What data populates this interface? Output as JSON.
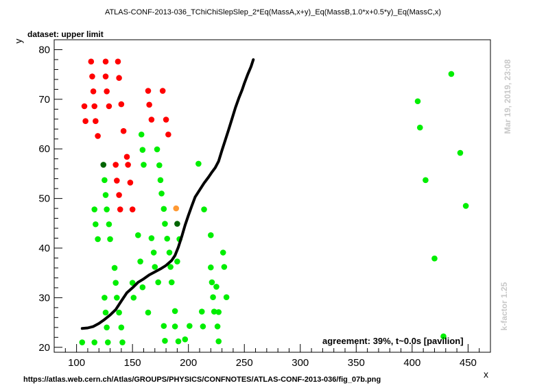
{
  "title": "ATLAS-CONF-2013-036_TChiChiSlepSlep_2*Eq(MassA,x+y)_Eq(MassB,1.0*x+0.5*y)_Eq(MassC,x)",
  "dataset_label": "dataset: upper limit",
  "footer_url": "https://atlas.web.cern.ch/Atlas/GROUPS/PHYSICS/CONFNOTES/ATLAS-CONF-2013-036/fig_07b.png",
  "agreement_text": "agreement: 39%, t~0.0s [pavilion]",
  "timestamp": "Mar 19, 2019, 23:08",
  "kfactor": "k-factor 1.25",
  "colors": {
    "excluded": "#ff0000",
    "allowed": "#00ee00",
    "dark_green": "#006400",
    "orange": "#ff9933",
    "curve": "#000000"
  },
  "chart_data": {
    "type": "scatter",
    "xlabel": "x",
    "ylabel": "y",
    "xlim": [
      80,
      470
    ],
    "ylim": [
      19,
      82
    ],
    "x_ticks": [
      100,
      150,
      200,
      250,
      300,
      350,
      400,
      450
    ],
    "y_ticks": [
      20,
      30,
      40,
      50,
      60,
      70,
      80
    ],
    "grid": false,
    "series": [
      {
        "color_key": "excluded",
        "points": [
          [
            107,
            68.6
          ],
          [
            108,
            65.6
          ],
          [
            113,
            77.6
          ],
          [
            114,
            74.6
          ],
          [
            115,
            71.6
          ],
          [
            116,
            68.6
          ],
          [
            117,
            65.6
          ],
          [
            119,
            62.6
          ],
          [
            126,
            77.6
          ],
          [
            126,
            74.6
          ],
          [
            127,
            71.6
          ],
          [
            129,
            68.6
          ],
          [
            137,
            77.6
          ],
          [
            138,
            74.3
          ],
          [
            140,
            69
          ],
          [
            142,
            63.6
          ],
          [
            135,
            56.8
          ],
          [
            136,
            53.6
          ],
          [
            138,
            50.7
          ],
          [
            139,
            47.8
          ],
          [
            145,
            58.4
          ],
          [
            146,
            56.8
          ],
          [
            148,
            53.2
          ],
          [
            150,
            47.8
          ],
          [
            164,
            71.7
          ],
          [
            165,
            68.9
          ],
          [
            167,
            65.9
          ],
          [
            177,
            71.7
          ],
          [
            180,
            65.9
          ],
          [
            182,
            62.9
          ]
        ]
      },
      {
        "color_key": "allowed",
        "points": [
          [
            105,
            21
          ],
          [
            116,
            47.8
          ],
          [
            117,
            44.8
          ],
          [
            119,
            41.8
          ],
          [
            116,
            21
          ],
          [
            125,
            53.7
          ],
          [
            126,
            50.7
          ],
          [
            127,
            47.8
          ],
          [
            129,
            44.8
          ],
          [
            130,
            41.8
          ],
          [
            125,
            30
          ],
          [
            126,
            27
          ],
          [
            127,
            24
          ],
          [
            128,
            21
          ],
          [
            134,
            36
          ],
          [
            135,
            33
          ],
          [
            136,
            30
          ],
          [
            138,
            27
          ],
          [
            140,
            24
          ],
          [
            141,
            21
          ],
          [
            150,
            33
          ],
          [
            151,
            30
          ],
          [
            155,
            42.6
          ],
          [
            157,
            37.3
          ],
          [
            158,
            62.9
          ],
          [
            159,
            59.8
          ],
          [
            160,
            56.8
          ],
          [
            159,
            32.1
          ],
          [
            164,
            27
          ],
          [
            167,
            42
          ],
          [
            169,
            39.1
          ],
          [
            170,
            36.2
          ],
          [
            172,
            59.9
          ],
          [
            173,
            33.1
          ],
          [
            174,
            56.7
          ],
          [
            175,
            53.7
          ],
          [
            176,
            51
          ],
          [
            178,
            47.9
          ],
          [
            179,
            44.9
          ],
          [
            181,
            41.9
          ],
          [
            183,
            39.1
          ],
          [
            184,
            36.2
          ],
          [
            185,
            33.1
          ],
          [
            178,
            24.3
          ],
          [
            179,
            21.3
          ],
          [
            188,
            27.3
          ],
          [
            188,
            24.2
          ],
          [
            190,
            37.3
          ],
          [
            191,
            21.2
          ],
          [
            192,
            41.8
          ],
          [
            197,
            21.6
          ],
          [
            201,
            24.3
          ],
          [
            209,
            57
          ],
          [
            212,
            27.2
          ],
          [
            213,
            24.2
          ],
          [
            214,
            47.8
          ],
          [
            220,
            42.6
          ],
          [
            220,
            36.1
          ],
          [
            221,
            33.1
          ],
          [
            222,
            30.1
          ],
          [
            223,
            27.2
          ],
          [
            225,
            32.2
          ],
          [
            226,
            24.2
          ],
          [
            227,
            21.2
          ],
          [
            227,
            27.1
          ],
          [
            231,
            39.1
          ],
          [
            232,
            36.2
          ],
          [
            234,
            30.1
          ],
          [
            405,
            69.6
          ],
          [
            407,
            64.3
          ],
          [
            412,
            53.7
          ],
          [
            420,
            37.9
          ],
          [
            428,
            22.2
          ],
          [
            435,
            75.1
          ],
          [
            443,
            59.2
          ],
          [
            448,
            48.5
          ]
        ]
      },
      {
        "color_key": "dark_green",
        "points": [
          [
            124,
            56.8
          ],
          [
            190,
            44.9
          ]
        ]
      },
      {
        "color_key": "orange",
        "points": [
          [
            189,
            48
          ]
        ]
      }
    ],
    "curve": [
      [
        105,
        23.8
      ],
      [
        110,
        23.9
      ],
      [
        115,
        24.2
      ],
      [
        120,
        24.8
      ],
      [
        125,
        25.6
      ],
      [
        130,
        26.5
      ],
      [
        135,
        27.6
      ],
      [
        140,
        29.3
      ],
      [
        145,
        31
      ],
      [
        150,
        32
      ],
      [
        155,
        33.1
      ],
      [
        160,
        33.8
      ],
      [
        165,
        34.6
      ],
      [
        170,
        35.2
      ],
      [
        175,
        35.8
      ],
      [
        180,
        36.5
      ],
      [
        185,
        37.5
      ],
      [
        188,
        38.5
      ],
      [
        191,
        40.2
      ],
      [
        194,
        42.3
      ],
      [
        197,
        44.6
      ],
      [
        200,
        46.6
      ],
      [
        203,
        48.5
      ],
      [
        206,
        50.3
      ],
      [
        210,
        51.7
      ],
      [
        214,
        53.1
      ],
      [
        218,
        54.3
      ],
      [
        221,
        55.3
      ],
      [
        224,
        56.2
      ],
      [
        227,
        57.5
      ],
      [
        230,
        59.7
      ],
      [
        233,
        61.8
      ],
      [
        236,
        63.9
      ],
      [
        239,
        66.1
      ],
      [
        242,
        68.3
      ],
      [
        245,
        70.2
      ],
      [
        248,
        71.9
      ],
      [
        250,
        73.2
      ],
      [
        253,
        75
      ],
      [
        256,
        76.6
      ],
      [
        258,
        78
      ]
    ]
  }
}
